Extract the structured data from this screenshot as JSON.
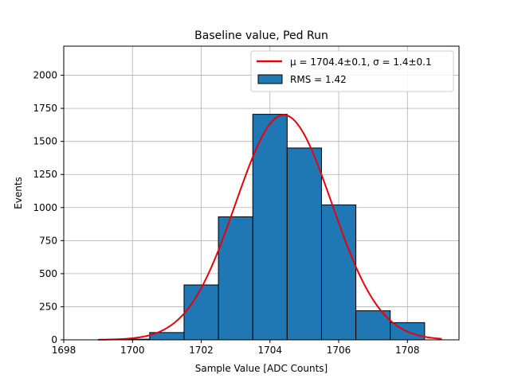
{
  "chart_data": {
    "type": "bar",
    "title": "Baseline value, Ped Run",
    "xlabel": "Sample Value [ADC Counts]",
    "ylabel": "Events",
    "xlim": [
      1698,
      1709.5
    ],
    "ylim": [
      0,
      2220
    ],
    "x_ticks": [
      1698,
      1700,
      1702,
      1704,
      1706,
      1708
    ],
    "y_ticks": [
      0,
      250,
      500,
      750,
      1000,
      1250,
      1500,
      1750,
      2000
    ],
    "grid": true,
    "legend_position": "top-right",
    "bins": [
      {
        "left": 1699.5,
        "right": 1700.5,
        "count": 5
      },
      {
        "left": 1700.5,
        "right": 1701.5,
        "count": 55
      },
      {
        "left": 1701.5,
        "right": 1702.5,
        "count": 415
      },
      {
        "left": 1702.5,
        "right": 1703.5,
        "count": 930
      },
      {
        "left": 1703.5,
        "right": 1704.5,
        "count": 1705
      },
      {
        "left": 1704.5,
        "right": 1705.5,
        "count": 1450
      },
      {
        "left": 1705.5,
        "right": 1706.5,
        "count": 1020
      },
      {
        "left": 1706.5,
        "right": 1707.5,
        "count": 220
      },
      {
        "left": 1707.5,
        "right": 1708.5,
        "count": 130
      }
    ],
    "series": [
      {
        "name": "RMS = 1.42",
        "kind": "histogram",
        "color": "#1f77b4"
      },
      {
        "name": "μ = 1704.4±0.1, σ = 1.4±0.1",
        "kind": "gaussian-fit",
        "color": "#e8000b",
        "mu": 1704.4,
        "sigma": 1.4,
        "amplitude": 1700,
        "x_range": [
          1699,
          1709
        ]
      }
    ]
  }
}
